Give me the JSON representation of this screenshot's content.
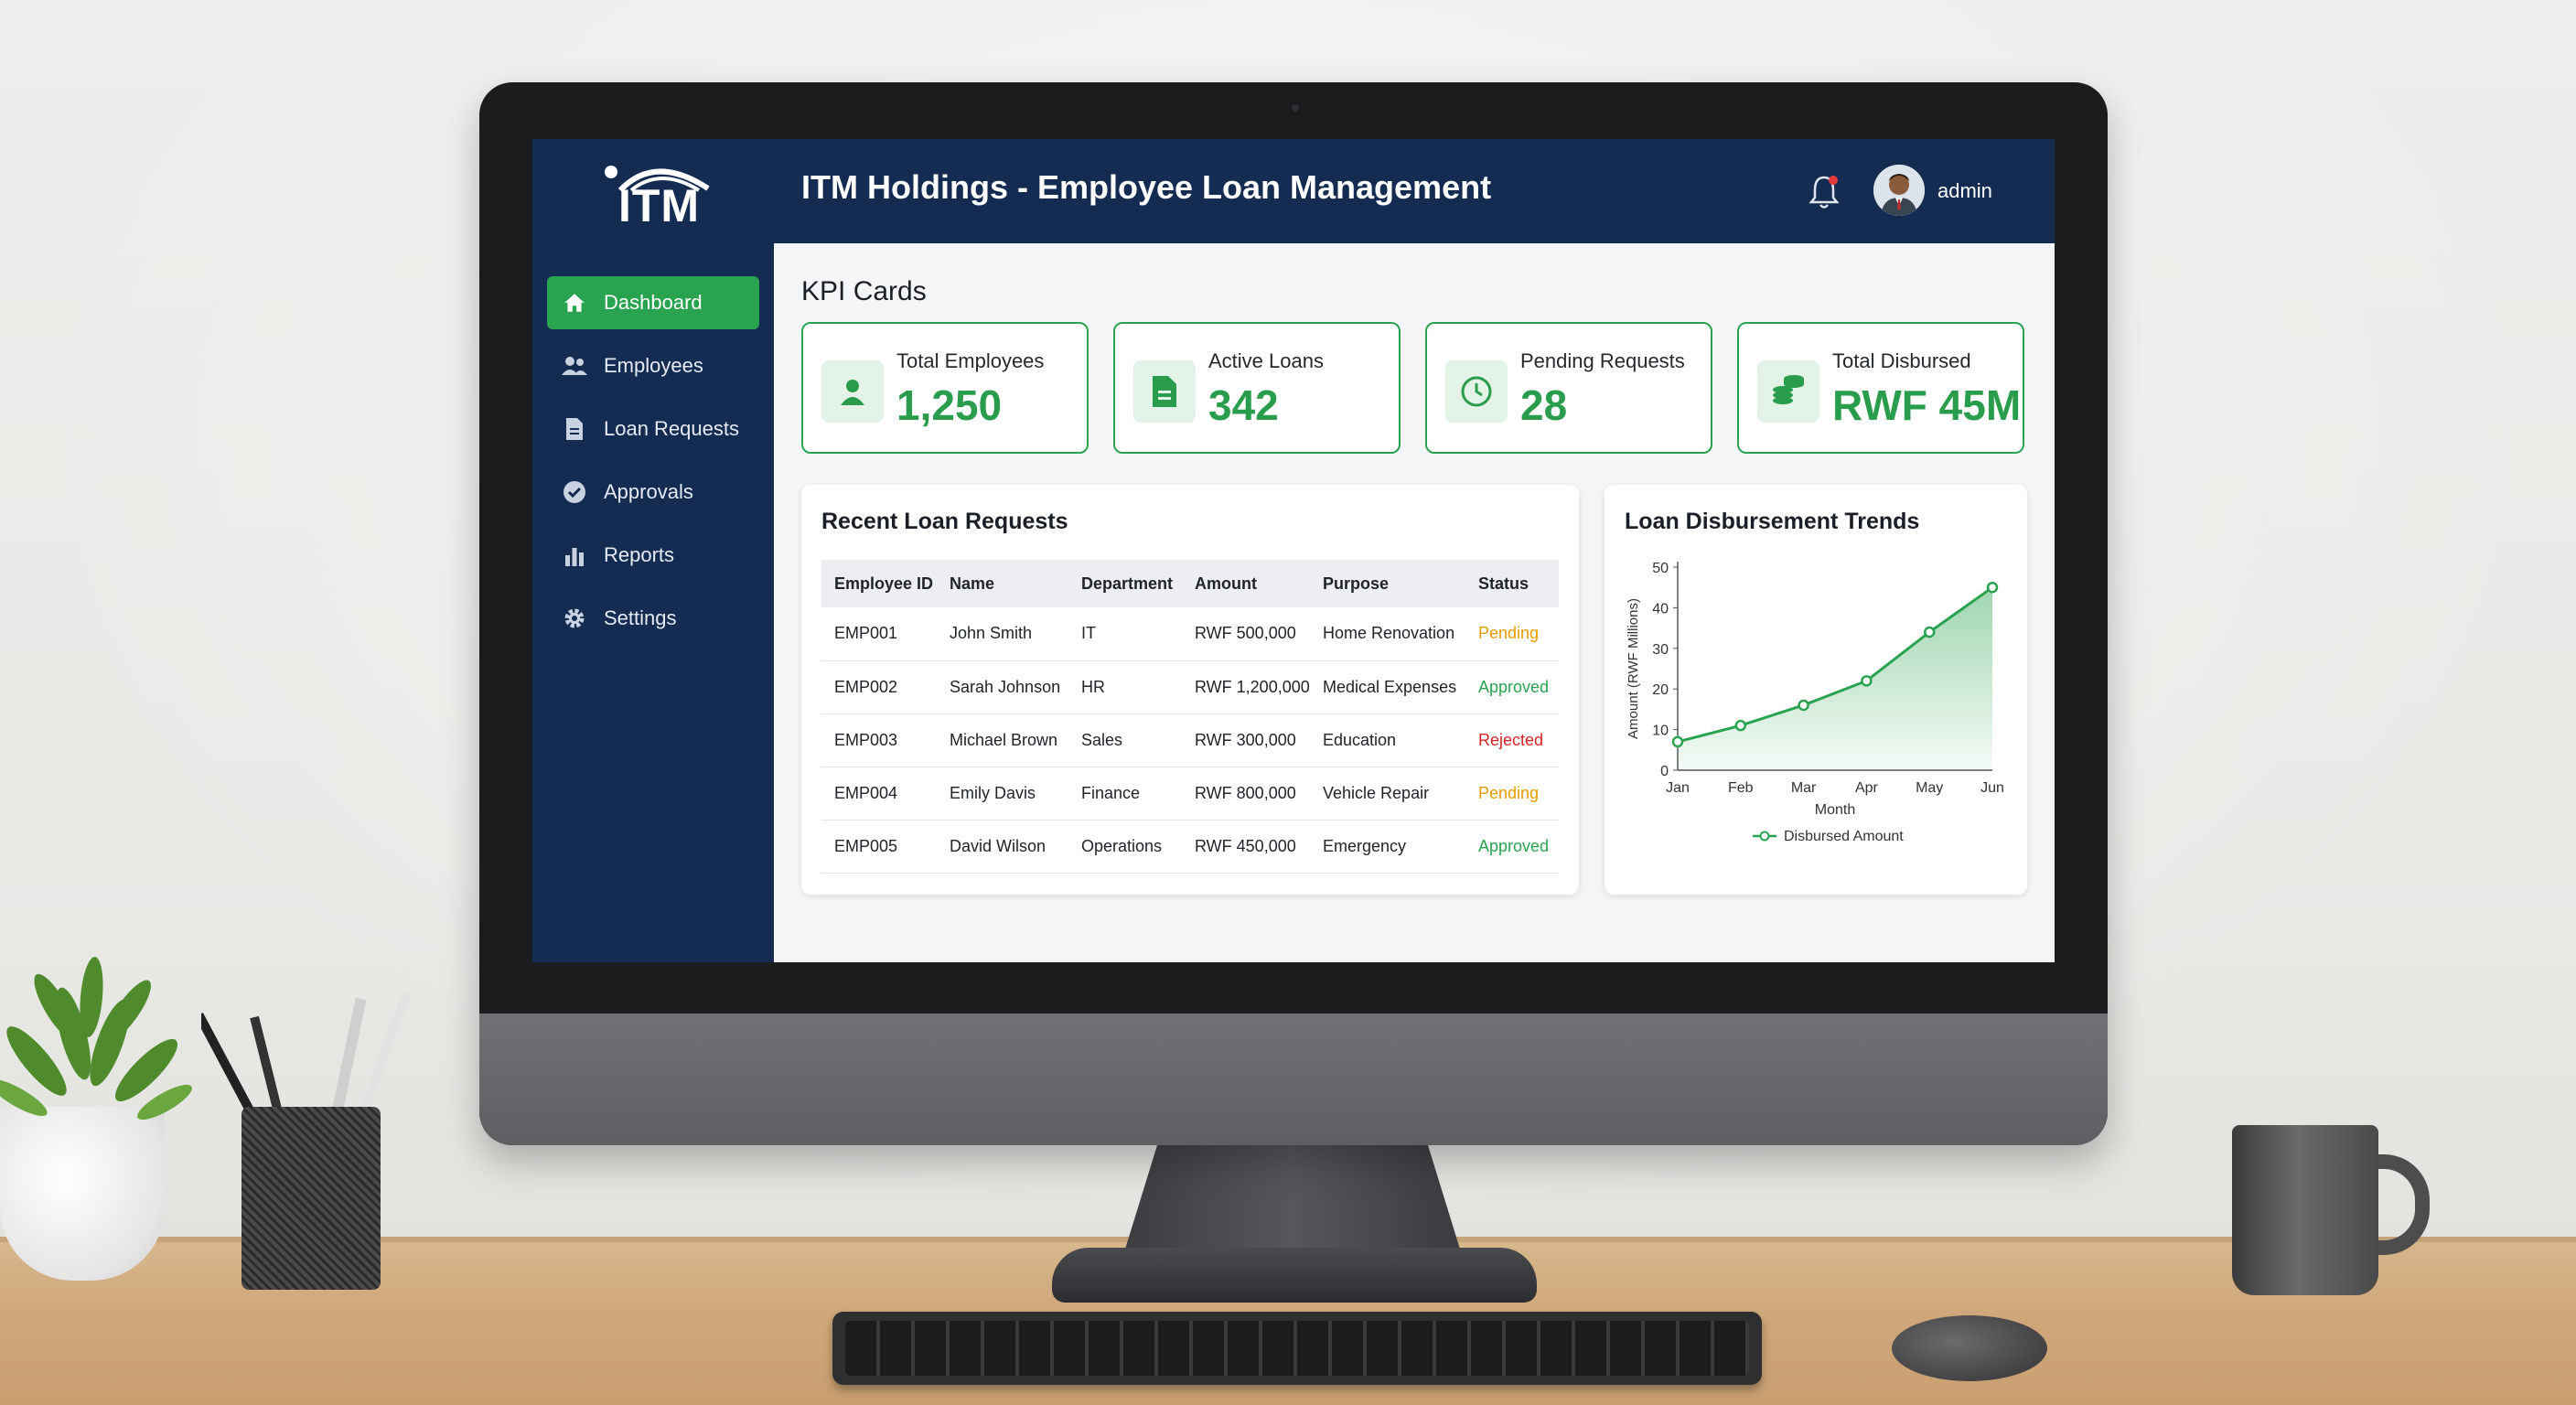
{
  "app": {
    "logo_text": "ITM",
    "title": "ITM Holdings - Employee Loan Management",
    "user": "admin"
  },
  "sidebar": {
    "items": [
      {
        "label": "Dashboard",
        "icon": "home-icon",
        "active": true
      },
      {
        "label": "Employees",
        "icon": "users-icon",
        "active": false
      },
      {
        "label": "Loan Requests",
        "icon": "document-icon",
        "active": false
      },
      {
        "label": "Approvals",
        "icon": "check-circle-icon",
        "active": false
      },
      {
        "label": "Reports",
        "icon": "bar-chart-icon",
        "active": false
      },
      {
        "label": "Settings",
        "icon": "gear-icon",
        "active": false
      }
    ]
  },
  "kpi": {
    "section_title": "KPI Cards",
    "cards": [
      {
        "label": "Total Employees",
        "value": "1,250",
        "icon": "user-icon"
      },
      {
        "label": "Active Loans",
        "value": "342",
        "icon": "document-icon"
      },
      {
        "label": "Pending Requests",
        "value": "28",
        "icon": "clock-icon"
      },
      {
        "label": "Total Disbursed",
        "value": "RWF 45M",
        "icon": "coins-icon"
      }
    ]
  },
  "recent_requests": {
    "title": "Recent Loan Requests",
    "columns": [
      "Employee ID",
      "Name",
      "Department",
      "Amount",
      "Purpose",
      "Status"
    ],
    "rows": [
      {
        "id": "EMP001",
        "name": "John Smith",
        "department": "IT",
        "amount": "RWF 500,000",
        "purpose": "Home Renovation",
        "status": "Pending"
      },
      {
        "id": "EMP002",
        "name": "Sarah Johnson",
        "department": "HR",
        "amount": "RWF 1,200,000",
        "purpose": "Medical Expenses",
        "status": "Approved"
      },
      {
        "id": "EMP003",
        "name": "Michael Brown",
        "department": "Sales",
        "amount": "RWF 300,000",
        "purpose": "Education",
        "status": "Rejected"
      },
      {
        "id": "EMP004",
        "name": "Emily Davis",
        "department": "Finance",
        "amount": "RWF 800,000",
        "purpose": "Vehicle Repair",
        "status": "Pending"
      },
      {
        "id": "EMP005",
        "name": "David Wilson",
        "department": "Operations",
        "amount": "RWF 450,000",
        "purpose": "Emergency",
        "status": "Approved"
      }
    ]
  },
  "colors": {
    "primary_navy": "#142b52",
    "accent_green": "#2aa350",
    "pending": "#e69b00",
    "approved": "#2aa350",
    "rejected": "#d32424"
  },
  "chart_data": {
    "type": "area",
    "title": "Loan Disbursement Trends",
    "xlabel": "Month",
    "ylabel": "Amount (RWF Millions)",
    "categories": [
      "Jan",
      "Feb",
      "Mar",
      "Apr",
      "May",
      "Jun"
    ],
    "series": [
      {
        "name": "Disbursed Amount",
        "values": [
          7,
          11,
          16,
          22,
          34,
          45
        ]
      }
    ],
    "yticks": [
      0,
      10,
      20,
      30,
      40,
      50
    ],
    "ylim": [
      0,
      50
    ],
    "grid": false,
    "legend": "bottom"
  }
}
